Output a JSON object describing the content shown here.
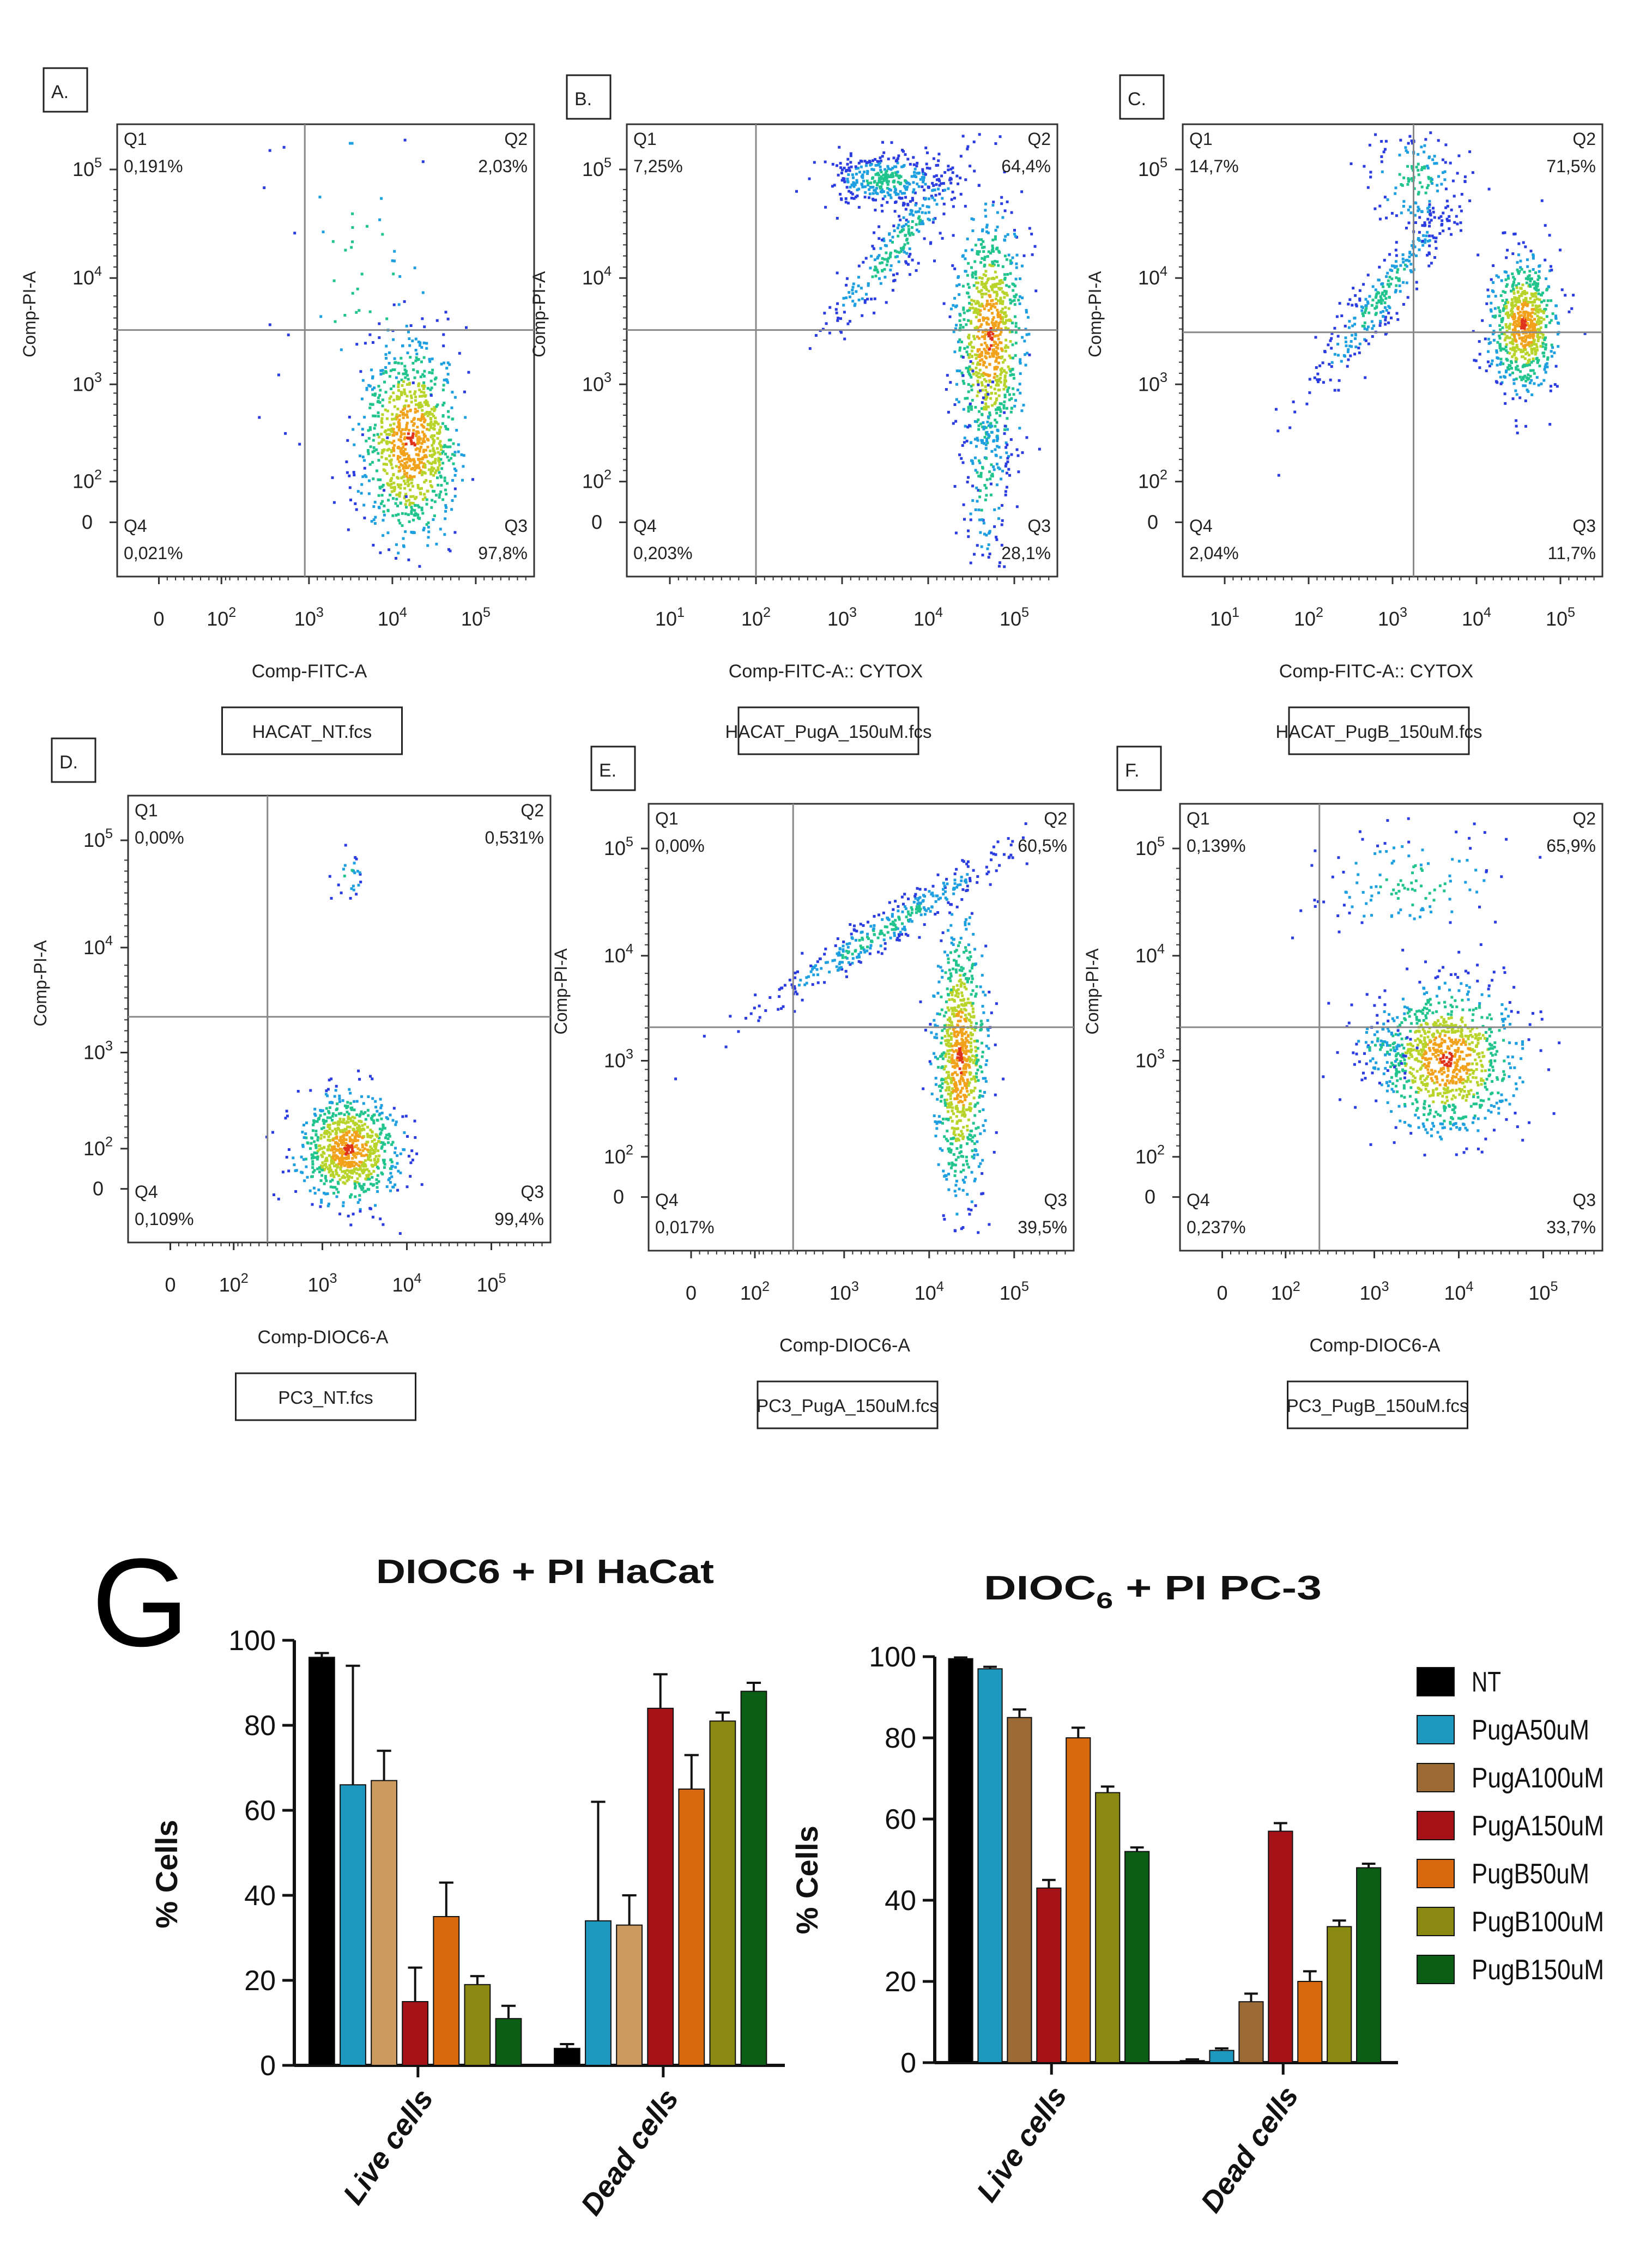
{
  "figure": {
    "big_label": "G"
  },
  "panels": [
    {
      "letter": "A.",
      "ylabel": "Comp-PI-A",
      "xlabel": "Comp-FITC-A",
      "file": "HACAT_NT.fcs",
      "quadrants": [
        {
          "name": "Q1",
          "value": "0,191%"
        },
        {
          "name": "Q2",
          "value": "2,03%"
        },
        {
          "name": "Q3",
          "value": "97,8%"
        },
        {
          "name": "Q4",
          "value": "0,021%"
        }
      ],
      "yticks": [
        {
          "base": "0",
          "exp": ""
        },
        {
          "base": "10",
          "exp": "2"
        },
        {
          "base": "10",
          "exp": "3"
        },
        {
          "base": "10",
          "exp": "4"
        },
        {
          "base": "10",
          "exp": "5"
        }
      ],
      "xticks": [
        {
          "base": "0",
          "exp": ""
        },
        {
          "base": "10",
          "exp": "2"
        },
        {
          "base": "10",
          "exp": "3"
        },
        {
          "base": "10",
          "exp": "4"
        },
        {
          "base": "10",
          "exp": "5"
        }
      ]
    },
    {
      "letter": "B.",
      "ylabel": "Comp-PI-A",
      "xlabel": "Comp-FITC-A:: CYTOX",
      "file": "HACAT_PugA_150uM.fcs",
      "quadrants": [
        {
          "name": "Q1",
          "value": "7,25%"
        },
        {
          "name": "Q2",
          "value": "64,4%"
        },
        {
          "name": "Q3",
          "value": "28,1%"
        },
        {
          "name": "Q4",
          "value": "0,203%"
        }
      ],
      "yticks": [
        {
          "base": "0",
          "exp": ""
        },
        {
          "base": "10",
          "exp": "2"
        },
        {
          "base": "10",
          "exp": "3"
        },
        {
          "base": "10",
          "exp": "4"
        },
        {
          "base": "10",
          "exp": "5"
        }
      ],
      "xticks": [
        {
          "base": "10",
          "exp": "1"
        },
        {
          "base": "10",
          "exp": "2"
        },
        {
          "base": "10",
          "exp": "3"
        },
        {
          "base": "10",
          "exp": "4"
        },
        {
          "base": "10",
          "exp": "5"
        }
      ]
    },
    {
      "letter": "C.",
      "ylabel": "Comp-PI-A",
      "xlabel": "Comp-FITC-A:: CYTOX",
      "file": "HACAT_PugB_150uM.fcs",
      "quadrants": [
        {
          "name": "Q1",
          "value": "14,7%"
        },
        {
          "name": "Q2",
          "value": "71,5%"
        },
        {
          "name": "Q3",
          "value": "11,7%"
        },
        {
          "name": "Q4",
          "value": "2,04%"
        }
      ],
      "yticks": [
        {
          "base": "0",
          "exp": ""
        },
        {
          "base": "10",
          "exp": "2"
        },
        {
          "base": "10",
          "exp": "3"
        },
        {
          "base": "10",
          "exp": "4"
        },
        {
          "base": "10",
          "exp": "5"
        }
      ],
      "xticks": [
        {
          "base": "10",
          "exp": "1"
        },
        {
          "base": "10",
          "exp": "2"
        },
        {
          "base": "10",
          "exp": "3"
        },
        {
          "base": "10",
          "exp": "4"
        },
        {
          "base": "10",
          "exp": "5"
        }
      ]
    },
    {
      "letter": "D.",
      "ylabel": "Comp-PI-A",
      "xlabel": "Comp-DIOC6-A",
      "file": "PC3_NT.fcs",
      "quadrants": [
        {
          "name": "Q1",
          "value": "0,00%"
        },
        {
          "name": "Q2",
          "value": "0,531%"
        },
        {
          "name": "Q3",
          "value": "99,4%"
        },
        {
          "name": "Q4",
          "value": "0,109%"
        }
      ],
      "yticks": [
        {
          "base": "0",
          "exp": ""
        },
        {
          "base": "10",
          "exp": "2"
        },
        {
          "base": "10",
          "exp": "3"
        },
        {
          "base": "10",
          "exp": "4"
        },
        {
          "base": "10",
          "exp": "5"
        }
      ],
      "xticks": [
        {
          "base": "0",
          "exp": ""
        },
        {
          "base": "10",
          "exp": "2"
        },
        {
          "base": "10",
          "exp": "3"
        },
        {
          "base": "10",
          "exp": "4"
        },
        {
          "base": "10",
          "exp": "5"
        }
      ]
    },
    {
      "letter": "E.",
      "ylabel": "Comp-PI-A",
      "xlabel": "Comp-DIOC6-A",
      "file": "PC3_PugA_150uM.fcs",
      "quadrants": [
        {
          "name": "Q1",
          "value": "0,00%"
        },
        {
          "name": "Q2",
          "value": "60,5%"
        },
        {
          "name": "Q3",
          "value": "39,5%"
        },
        {
          "name": "Q4",
          "value": "0,017%"
        }
      ],
      "yticks": [
        {
          "base": "0",
          "exp": ""
        },
        {
          "base": "10",
          "exp": "2"
        },
        {
          "base": "10",
          "exp": "3"
        },
        {
          "base": "10",
          "exp": "4"
        },
        {
          "base": "10",
          "exp": "5"
        }
      ],
      "xticks": [
        {
          "base": "0",
          "exp": ""
        },
        {
          "base": "10",
          "exp": "2"
        },
        {
          "base": "10",
          "exp": "3"
        },
        {
          "base": "10",
          "exp": "4"
        },
        {
          "base": "10",
          "exp": "5"
        }
      ]
    },
    {
      "letter": "F.",
      "ylabel": "Comp-PI-A",
      "xlabel": "Comp-DIOC6-A",
      "file": "PC3_PugB_150uM.fcs",
      "quadrants": [
        {
          "name": "Q1",
          "value": "0,139%"
        },
        {
          "name": "Q2",
          "value": "65,9%"
        },
        {
          "name": "Q3",
          "value": "33,7%"
        },
        {
          "name": "Q4",
          "value": "0,237%"
        }
      ],
      "yticks": [
        {
          "base": "0",
          "exp": ""
        },
        {
          "base": "10",
          "exp": "2"
        },
        {
          "base": "10",
          "exp": "3"
        },
        {
          "base": "10",
          "exp": "4"
        },
        {
          "base": "10",
          "exp": "5"
        }
      ],
      "xticks": [
        {
          "base": "0",
          "exp": ""
        },
        {
          "base": "10",
          "exp": "2"
        },
        {
          "base": "10",
          "exp": "3"
        },
        {
          "base": "10",
          "exp": "4"
        },
        {
          "base": "10",
          "exp": "5"
        }
      ]
    }
  ],
  "chart_data": [
    {
      "type": "bar",
      "title": "DIOC6 + PI HaCat",
      "title_base": "DIOC6 + PI HaCat",
      "title_sub": "",
      "ylabel": "% Cells",
      "ylim": [
        0,
        100
      ],
      "yticks": [
        0,
        20,
        40,
        60,
        80,
        100
      ],
      "categories": [
        "Live cells",
        "Dead cells"
      ],
      "series": [
        {
          "name": "NT",
          "values": [
            96,
            4
          ],
          "errors": [
            1,
            1
          ]
        },
        {
          "name": "PugA50uM",
          "values": [
            66,
            34
          ],
          "errors": [
            28,
            28
          ]
        },
        {
          "name": "PugA100uM",
          "values": [
            67,
            33
          ],
          "errors": [
            7,
            7
          ]
        },
        {
          "name": "PugA150uM",
          "values": [
            15,
            84
          ],
          "errors": [
            8,
            8
          ]
        },
        {
          "name": "PugB50uM",
          "values": [
            35,
            65
          ],
          "errors": [
            8,
            8
          ]
        },
        {
          "name": "PugB100uM",
          "values": [
            19,
            81
          ],
          "errors": [
            2,
            2
          ]
        },
        {
          "name": "PugB150uM",
          "values": [
            11,
            88
          ],
          "errors": [
            3,
            2
          ]
        }
      ]
    },
    {
      "type": "bar",
      "title": "DIOC6 + PI PC-3",
      "title_base": "DIOC",
      "title_sub": "6",
      "title_rest": " + PI PC-3",
      "ylabel": "% Cells",
      "ylim": [
        0,
        100
      ],
      "yticks": [
        0,
        20,
        40,
        60,
        80,
        100
      ],
      "categories": [
        "Live cells",
        "Dead cells"
      ],
      "series": [
        {
          "name": "NT",
          "values": [
            99.5,
            0.5
          ],
          "errors": [
            0.3,
            0.3
          ]
        },
        {
          "name": "PugA50uM",
          "values": [
            97,
            3
          ],
          "errors": [
            0.5,
            0.5
          ]
        },
        {
          "name": "PugA100uM",
          "values": [
            85,
            15
          ],
          "errors": [
            2,
            2
          ]
        },
        {
          "name": "PugA150uM",
          "values": [
            43,
            57
          ],
          "errors": [
            2,
            2
          ]
        },
        {
          "name": "PugB50uM",
          "values": [
            80,
            20
          ],
          "errors": [
            2.5,
            2.5
          ]
        },
        {
          "name": "PugB100uM",
          "values": [
            66.5,
            33.5
          ],
          "errors": [
            1.5,
            1.5
          ]
        },
        {
          "name": "PugB150uM",
          "values": [
            52,
            48
          ],
          "errors": [
            1,
            1
          ]
        }
      ]
    }
  ],
  "legend": [
    {
      "name": "NT",
      "color": "#000000"
    },
    {
      "name": "PugA50uM",
      "color": "#1e98be"
    },
    {
      "name": "PugA100uM",
      "color": "#9c6b35"
    },
    {
      "name": "PugA150uM",
      "color": "#a51218"
    },
    {
      "name": "PugB50uM",
      "color": "#d8690f"
    },
    {
      "name": "PugB100uM",
      "color": "#8a8a12"
    },
    {
      "name": "PugB150uM",
      "color": "#0c5e16"
    }
  ],
  "colors": {
    "hacat_bars": [
      "#000000",
      "#1e98be",
      "#cc9a5e",
      "#a51218",
      "#d8690f",
      "#8a8a12",
      "#0c5e16"
    ],
    "pc3_bars": [
      "#000000",
      "#1e98be",
      "#9c6b35",
      "#a51218",
      "#d8690f",
      "#8a8a12",
      "#0c5e16"
    ]
  }
}
